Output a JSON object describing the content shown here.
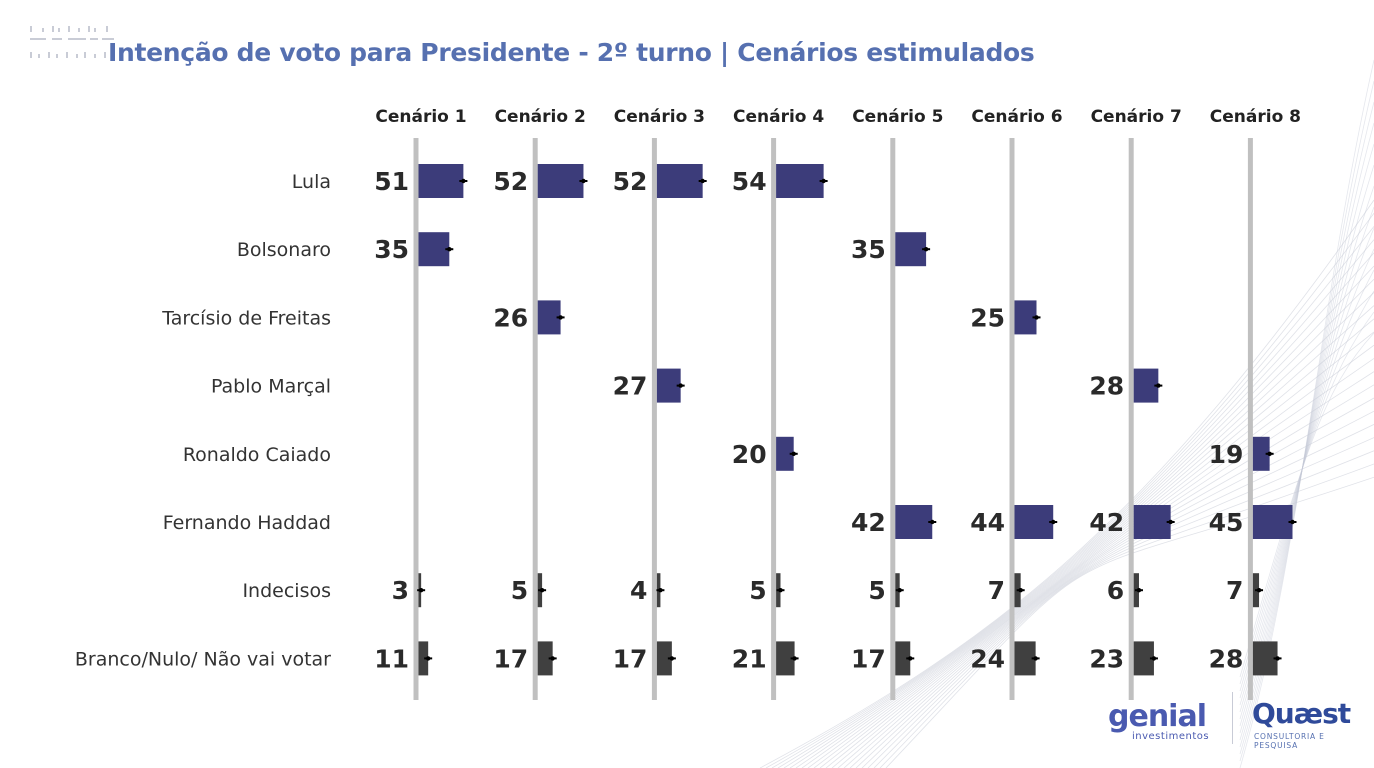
{
  "title": "Intenção de voto para Presidente - 2º turno | Cenários estimulados",
  "colors": {
    "title": "#5670b0",
    "candidate_bar": "#3c3c7a",
    "other_bar": "#404040",
    "axis": "#c0c0c0",
    "label": "#333333",
    "value": "#2a2a2a"
  },
  "logos": {
    "genial": {
      "name": "genial",
      "sub": "investimentos"
    },
    "quaest": {
      "name": "Quæst",
      "sub": "CONSULTORIA E PESQUISA"
    }
  },
  "chart_data": {
    "type": "bar",
    "orientation": "horizontal",
    "title": "Intenção de voto para Presidente - 2º turno | Cenários estimulados",
    "unit": "%",
    "categories": [
      "Lula",
      "Bolsonaro",
      "Tarcísio de Freitas",
      "Pablo Marçal",
      "Ronaldo Caiado",
      "Fernando Haddad",
      "Indecisos",
      "Branco/Nulo/ Não vai votar"
    ],
    "category_kind": [
      "candidate",
      "candidate",
      "candidate",
      "candidate",
      "candidate",
      "candidate",
      "other",
      "other"
    ],
    "series": [
      {
        "name": "Cenário 1",
        "values": [
          51,
          35,
          null,
          null,
          null,
          null,
          3,
          11
        ]
      },
      {
        "name": "Cenário 2",
        "values": [
          52,
          null,
          26,
          null,
          null,
          null,
          5,
          17
        ]
      },
      {
        "name": "Cenário 3",
        "values": [
          52,
          null,
          null,
          27,
          null,
          null,
          4,
          17
        ]
      },
      {
        "name": "Cenário 4",
        "values": [
          54,
          null,
          null,
          null,
          20,
          null,
          5,
          21
        ]
      },
      {
        "name": "Cenário 5",
        "values": [
          null,
          35,
          null,
          null,
          null,
          42,
          5,
          17
        ]
      },
      {
        "name": "Cenário 6",
        "values": [
          null,
          null,
          25,
          null,
          null,
          44,
          7,
          24
        ]
      },
      {
        "name": "Cenário 7",
        "values": [
          null,
          null,
          null,
          28,
          null,
          42,
          6,
          23
        ]
      },
      {
        "name": "Cenário 8",
        "values": [
          null,
          null,
          null,
          null,
          19,
          45,
          7,
          28
        ]
      }
    ],
    "xlim": [
      0,
      100
    ],
    "error_bars": true,
    "grid": false
  }
}
